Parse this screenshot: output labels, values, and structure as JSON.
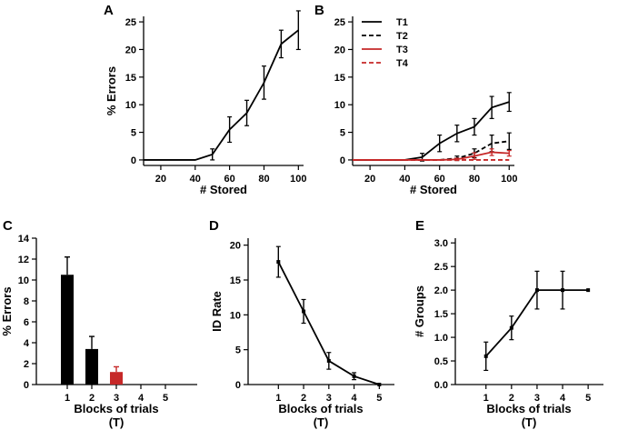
{
  "chart_data": [
    {
      "id": "A",
      "panel_label": "A",
      "type": "line",
      "xlabel": "# Stored",
      "ylabel": "% Errors",
      "xlim": [
        10,
        103
      ],
      "ylim": [
        -1,
        26
      ],
      "xticks": [
        20,
        40,
        60,
        80,
        100
      ],
      "yticks": [
        0,
        5,
        10,
        15,
        20,
        25
      ],
      "series": [
        {
          "name": "errors",
          "color": "#000000",
          "dash": "solid",
          "x": [
            10,
            20,
            30,
            40,
            50,
            60,
            70,
            80,
            90,
            100
          ],
          "y": [
            0,
            0,
            0,
            0,
            1,
            5.5,
            8.5,
            14,
            21,
            23.5
          ],
          "err": [
            0,
            0,
            0,
            0,
            1,
            2.3,
            2.3,
            3,
            2.5,
            3.5
          ]
        }
      ]
    },
    {
      "id": "B",
      "panel_label": "B",
      "type": "line",
      "xlabel": "# Stored",
      "ylabel": "",
      "xlim": [
        10,
        103
      ],
      "ylim": [
        -1,
        26
      ],
      "xticks": [
        20,
        40,
        60,
        80,
        100
      ],
      "yticks": [
        0,
        5,
        10,
        15,
        20,
        25
      ],
      "legend_position": "top-left",
      "series": [
        {
          "name": "T1",
          "color": "#000000",
          "dash": "solid",
          "x": [
            10,
            20,
            30,
            40,
            50,
            60,
            70,
            80,
            90,
            100
          ],
          "y": [
            0,
            0,
            0,
            0,
            0.5,
            3,
            4.8,
            6,
            9.5,
            10.5
          ],
          "err": [
            0,
            0,
            0,
            0,
            0.7,
            1.5,
            1.5,
            1.5,
            2,
            1.7
          ]
        },
        {
          "name": "T2",
          "color": "#000000",
          "dash": "dashed",
          "x": [
            10,
            20,
            30,
            40,
            50,
            60,
            70,
            80,
            90,
            100
          ],
          "y": [
            0,
            0,
            0,
            0,
            0,
            0,
            0.3,
            1.2,
            3,
            3.4
          ],
          "err": [
            0,
            0,
            0,
            0,
            0,
            0,
            0.4,
            0.8,
            1.5,
            1.5
          ]
        },
        {
          "name": "T3",
          "color": "#c62828",
          "dash": "solid",
          "x": [
            10,
            20,
            30,
            40,
            50,
            60,
            70,
            80,
            90,
            100
          ],
          "y": [
            0,
            0,
            0,
            0,
            0,
            0,
            0.1,
            0.7,
            1.4,
            1.2
          ],
          "err": [
            0,
            0,
            0,
            0,
            0,
            0,
            0.2,
            0.6,
            0.6,
            0.5
          ]
        },
        {
          "name": "T4",
          "color": "#c62828",
          "dash": "dashed",
          "x": [
            10,
            20,
            30,
            40,
            50,
            60,
            70,
            80,
            90,
            100
          ],
          "y": [
            0,
            0,
            0,
            0,
            0,
            0,
            0,
            0,
            0,
            0
          ],
          "err": [
            0,
            0,
            0,
            0,
            0,
            0,
            0,
            0,
            0,
            0
          ]
        }
      ]
    },
    {
      "id": "C",
      "panel_label": "C",
      "type": "bar",
      "xlabel": "Blocks of trials",
      "xlabel2": "(T)",
      "ylabel": "% Errors",
      "ylim": [
        0,
        14
      ],
      "yticks": [
        0,
        2,
        4,
        6,
        8,
        10,
        12,
        14
      ],
      "categories": [
        "1",
        "2",
        "3",
        "4",
        "5"
      ],
      "values": [
        10.5,
        3.4,
        1.2,
        0,
        0
      ],
      "errors": [
        1.7,
        1.2,
        0.5,
        0,
        0
      ],
      "colors": [
        "#000000",
        "#000000",
        "#c62828",
        "#000000",
        "#000000"
      ]
    },
    {
      "id": "D",
      "panel_label": "D",
      "type": "line",
      "xlabel": "Blocks of trials",
      "xlabel2": "(T)",
      "ylabel": "ID Rate",
      "xlim": [
        -0.2,
        5.6
      ],
      "ylim": [
        0,
        21
      ],
      "xticks": [
        1,
        2,
        3,
        4,
        5
      ],
      "yticks": [
        0,
        5,
        10,
        15,
        20
      ],
      "series": [
        {
          "name": "ID rate",
          "color": "#000000",
          "dash": "solid",
          "x": [
            1,
            2,
            3,
            4,
            5
          ],
          "y": [
            17.6,
            10.5,
            3.4,
            1.2,
            0
          ],
          "err": [
            2.2,
            1.7,
            1.2,
            0.5,
            0
          ]
        }
      ]
    },
    {
      "id": "E",
      "panel_label": "E",
      "type": "line",
      "xlabel": "Blocks of trials",
      "xlabel2": "(T)",
      "ylabel": "# Groups",
      "xlim": [
        -0.2,
        5.6
      ],
      "ylim": [
        0,
        3.1
      ],
      "xticks": [
        1,
        2,
        3,
        4,
        5
      ],
      "yticks": [
        0.0,
        0.5,
        1.0,
        1.5,
        2.0,
        2.5,
        3.0
      ],
      "ytick_decimals": 1,
      "series": [
        {
          "name": "groups",
          "color": "#000000",
          "dash": "solid",
          "x": [
            1,
            2,
            3,
            4,
            5
          ],
          "y": [
            0.6,
            1.2,
            2.0,
            2.0,
            2.0
          ],
          "err": [
            0.3,
            0.25,
            0.4,
            0.4,
            0
          ]
        }
      ]
    }
  ]
}
